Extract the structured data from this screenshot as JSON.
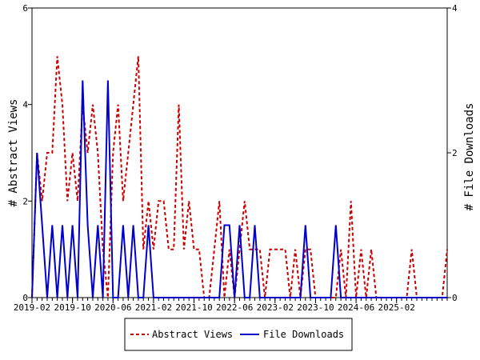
{
  "chart_data": {
    "type": "line",
    "ylabel": "# Abstract Views",
    "y2label": "# File Downloads",
    "ylim": [
      0,
      6
    ],
    "y2lim": [
      0,
      4
    ],
    "yticks": [
      "0",
      "2",
      "4",
      "6"
    ],
    "y2ticks": [
      "0",
      "2",
      "4"
    ],
    "xticks": [
      "2019-02",
      "2019-10",
      "2020-06",
      "2021-02",
      "2021-10",
      "2022-06",
      "2023-02",
      "2023-10",
      "2024-06",
      "2025-02"
    ],
    "x_start": "2019-02",
    "x_end": "2025-12",
    "legend_position": "bottom",
    "grid": false,
    "series": [
      {
        "name": "Abstract Views",
        "axis": "left",
        "color": "#cc0000",
        "style": "dashed",
        "x": [
          "2019-02",
          "2019-03",
          "2019-04",
          "2019-05",
          "2019-06",
          "2019-07",
          "2019-08",
          "2019-09",
          "2019-10",
          "2019-11",
          "2019-12",
          "2020-01",
          "2020-02",
          "2020-03",
          "2020-04",
          "2020-05",
          "2020-06",
          "2020-07",
          "2020-08",
          "2020-09",
          "2020-10",
          "2020-11",
          "2020-12",
          "2021-01",
          "2021-02",
          "2021-03",
          "2021-04",
          "2021-05",
          "2021-06",
          "2021-07",
          "2021-08",
          "2021-09",
          "2021-10",
          "2021-11",
          "2021-12",
          "2022-01",
          "2022-02",
          "2022-03",
          "2022-04",
          "2022-05",
          "2022-06",
          "2022-07",
          "2022-08",
          "2022-09",
          "2022-10",
          "2022-11",
          "2022-12",
          "2023-01",
          "2023-02",
          "2023-03",
          "2023-04",
          "2023-05",
          "2023-06",
          "2023-07",
          "2023-08",
          "2023-09",
          "2023-10",
          "2023-11",
          "2023-12",
          "2024-01",
          "2024-02",
          "2024-03",
          "2024-04",
          "2024-05",
          "2024-06",
          "2024-07",
          "2024-08",
          "2024-09",
          "2024-10",
          "2024-11",
          "2024-12",
          "2025-01",
          "2025-02",
          "2025-03",
          "2025-04",
          "2025-05",
          "2025-06",
          "2025-07",
          "2025-08",
          "2025-09",
          "2025-10",
          "2025-11",
          "2025-12"
        ],
        "values": [
          0,
          3,
          2,
          3,
          3,
          5,
          4,
          2,
          3,
          2,
          4,
          3,
          4,
          3,
          1,
          0,
          3,
          4,
          2,
          3,
          4,
          5,
          1,
          2,
          1,
          2,
          2,
          1,
          1,
          4,
          1,
          2,
          1,
          1,
          0,
          0,
          1,
          2,
          0,
          1,
          0,
          1,
          2,
          1,
          1,
          1,
          0,
          1,
          1,
          1,
          1,
          0,
          1,
          0,
          1,
          1,
          0,
          0,
          0,
          0,
          0,
          1,
          0,
          2,
          0,
          1,
          0,
          1,
          0,
          0,
          0,
          0,
          0,
          0,
          0,
          1,
          0,
          0,
          0,
          0,
          0,
          0,
          1
        ]
      },
      {
        "name": "File Downloads",
        "axis": "right",
        "color": "#0000cc",
        "style": "solid",
        "x": [
          "2019-02",
          "2019-03",
          "2019-04",
          "2019-05",
          "2019-06",
          "2019-07",
          "2019-08",
          "2019-09",
          "2019-10",
          "2019-11",
          "2019-12",
          "2020-01",
          "2020-02",
          "2020-03",
          "2020-04",
          "2020-05",
          "2020-06",
          "2020-07",
          "2020-08",
          "2020-09",
          "2020-10",
          "2020-11",
          "2020-12",
          "2021-01",
          "2021-02",
          "2021-03",
          "2021-04",
          "2021-05",
          "2021-06",
          "2021-07",
          "2021-08",
          "2021-09",
          "2021-10",
          "2021-11",
          "2021-12",
          "2022-01",
          "2022-02",
          "2022-03",
          "2022-04",
          "2022-05",
          "2022-06",
          "2022-07",
          "2022-08",
          "2022-09",
          "2022-10",
          "2022-11",
          "2022-12",
          "2023-01",
          "2023-02",
          "2023-03",
          "2023-04",
          "2023-05",
          "2023-06",
          "2023-07",
          "2023-08",
          "2023-09",
          "2023-10",
          "2023-11",
          "2023-12",
          "2024-01",
          "2024-02",
          "2024-03",
          "2024-04",
          "2024-05",
          "2024-06",
          "2024-07",
          "2024-08",
          "2024-09",
          "2024-10",
          "2024-11",
          "2024-12",
          "2025-01",
          "2025-02",
          "2025-03",
          "2025-04",
          "2025-05",
          "2025-06",
          "2025-07",
          "2025-08",
          "2025-09",
          "2025-10",
          "2025-11",
          "2025-12"
        ],
        "values": [
          0,
          2,
          1,
          0,
          1,
          0,
          1,
          0,
          1,
          0,
          3,
          1,
          0,
          1,
          0,
          3,
          0,
          0,
          1,
          0,
          1,
          0,
          0,
          1,
          0,
          0,
          0,
          0,
          0,
          0,
          0,
          0,
          0,
          0,
          0,
          0,
          0,
          0,
          1,
          1,
          0,
          1,
          0,
          0,
          1,
          0,
          0,
          0,
          0,
          0,
          0,
          0,
          0,
          0,
          1,
          0,
          0,
          0,
          0,
          0,
          1,
          0,
          0,
          0,
          0,
          0,
          0,
          0,
          0,
          0,
          0,
          0,
          0,
          0,
          0,
          0,
          0,
          0,
          0,
          0,
          0,
          0,
          0
        ]
      }
    ]
  }
}
